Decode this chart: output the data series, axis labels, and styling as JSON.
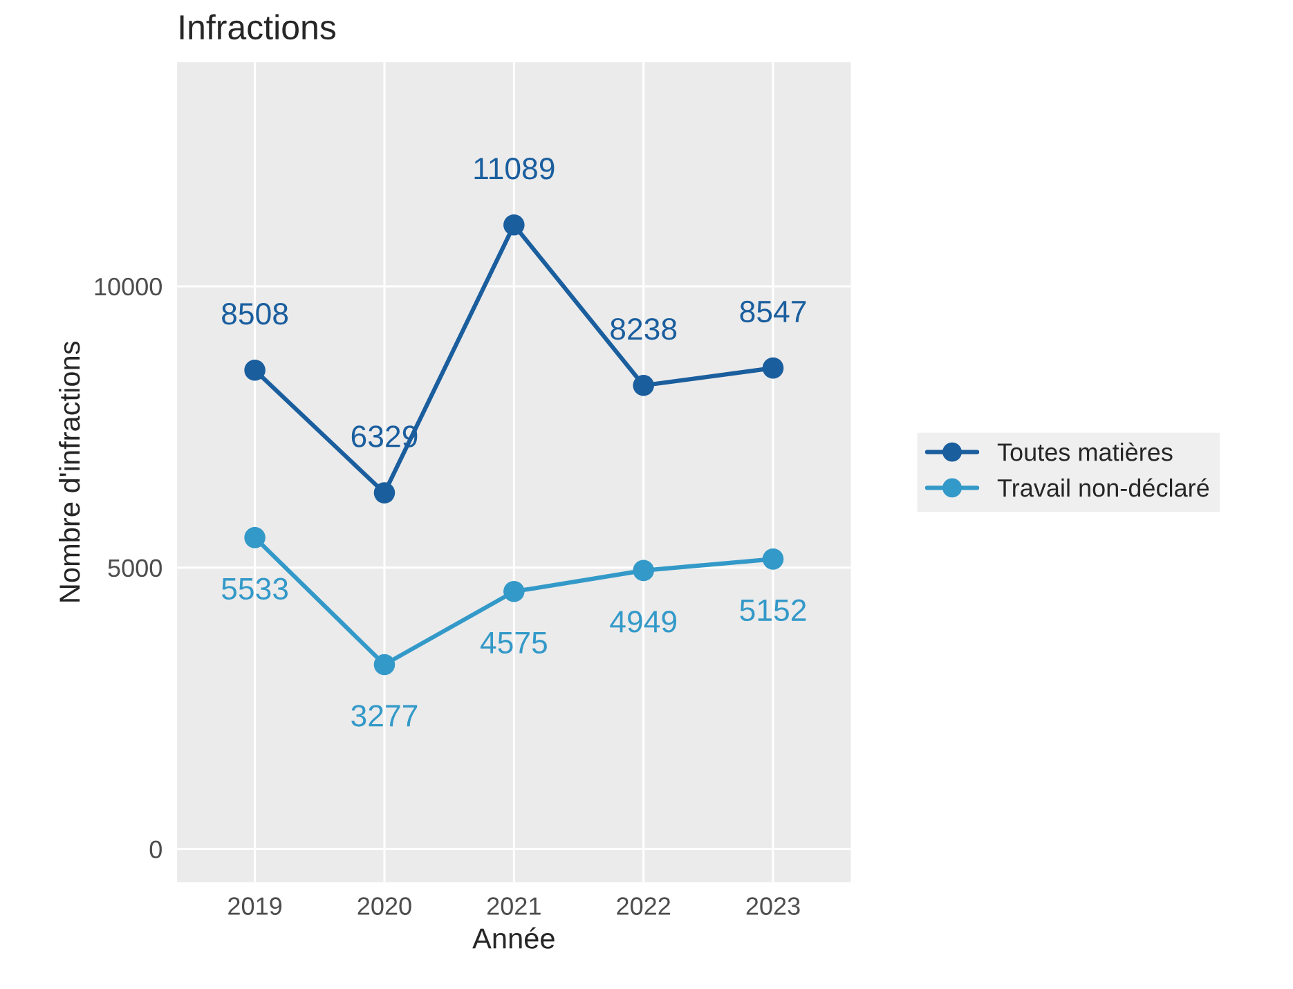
{
  "chart_data": {
    "type": "line",
    "title": "Infractions",
    "xlabel": "Année",
    "ylabel": "Nombre d'infractions",
    "categories": [
      "2019",
      "2020",
      "2021",
      "2022",
      "2023"
    ],
    "series": [
      {
        "name": "Toutes matières",
        "color": "#1a5e9e",
        "values": [
          8508,
          6329,
          11089,
          8238,
          8547
        ]
      },
      {
        "name": "Travail non-déclaré",
        "color": "#3399c8",
        "values": [
          5533,
          3277,
          4575,
          4949,
          5152
        ]
      }
    ],
    "ylim": [
      -590,
      13980
    ],
    "yticks": [
      0,
      5000,
      10000
    ],
    "grid": true,
    "legend": "right",
    "marker": "circle",
    "line_style": "solid",
    "data_labels": true
  }
}
